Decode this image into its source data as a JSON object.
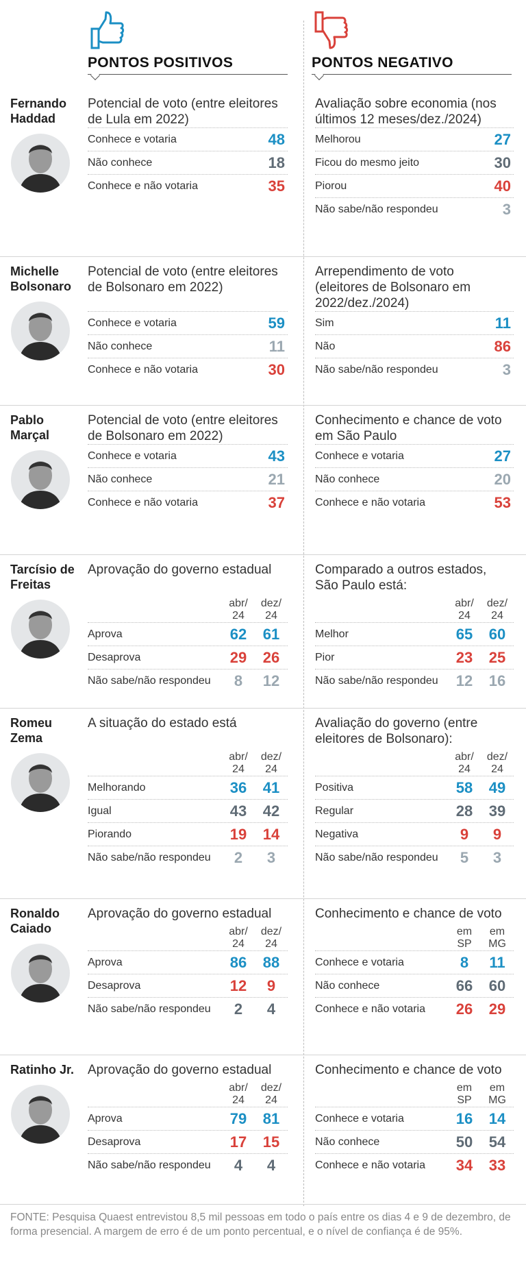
{
  "header": {
    "positive": "PONTOS POSITIVOS",
    "negative": "PONTOS NEGATIVO"
  },
  "people": [
    {
      "name": "Fernando Haddad",
      "positive": {
        "title": "Potencial de voto (entre eleitores de Lula em 2022)",
        "rows": [
          {
            "label": "Conhece e votaria",
            "values": [
              48
            ],
            "color": "#1b8fc4"
          },
          {
            "label": "Não conhece",
            "values": [
              18
            ],
            "color": "#5f6b75"
          },
          {
            "label": "Conhece e não votaria",
            "values": [
              35
            ],
            "color": "#d9413a"
          }
        ]
      },
      "negative": {
        "title": "Avaliação sobre economia (nos últimos 12 meses/dez./2024)",
        "rows": [
          {
            "label": "Melhorou",
            "values": [
              27
            ],
            "color": "#1b8fc4"
          },
          {
            "label": "Ficou do mesmo jeito",
            "values": [
              30
            ],
            "color": "#5f6b75"
          },
          {
            "label": "Piorou",
            "values": [
              40
            ],
            "color": "#d9413a"
          },
          {
            "label": "Não sabe/não respondeu",
            "values": [
              3
            ],
            "color": "#9aa7b0"
          }
        ]
      }
    },
    {
      "name": "Michelle Bolsonaro",
      "positive": {
        "title": "Potencial de voto (entre eleitores de Bolsonaro em 2022)",
        "rows": [
          {
            "label": "Conhece e votaria",
            "values": [
              59
            ],
            "color": "#1b8fc4"
          },
          {
            "label": "Não conhece",
            "values": [
              11
            ],
            "color": "#9aa7b0"
          },
          {
            "label": "Conhece e não votaria",
            "values": [
              30
            ],
            "color": "#d9413a"
          }
        ]
      },
      "negative": {
        "title": "Arrependimento de voto (eleitores de Bolsonaro em 2022/dez./2024)",
        "rows": [
          {
            "label": "Sim",
            "values": [
              11
            ],
            "color": "#1b8fc4"
          },
          {
            "label": "Não",
            "values": [
              86
            ],
            "color": "#d9413a"
          },
          {
            "label": "Não sabe/não respondeu",
            "values": [
              3
            ],
            "color": "#9aa7b0"
          }
        ]
      }
    },
    {
      "name": "Pablo Marçal",
      "positive": {
        "title": "Potencial de voto (entre eleitores de Bolsonaro em 2022)",
        "rows": [
          {
            "label": "Conhece e votaria",
            "values": [
              43
            ],
            "color": "#1b8fc4"
          },
          {
            "label": "Não conhece",
            "values": [
              21
            ],
            "color": "#9aa7b0"
          },
          {
            "label": "Conhece e não votaria",
            "values": [
              37
            ],
            "color": "#d9413a"
          }
        ]
      },
      "negative": {
        "title": "Conhecimento e chance de voto em São Paulo",
        "rows": [
          {
            "label": "Conhece e votaria",
            "values": [
              27
            ],
            "color": "#1b8fc4"
          },
          {
            "label": "Não conhece",
            "values": [
              20
            ],
            "color": "#9aa7b0"
          },
          {
            "label": "Conhece e não votaria",
            "values": [
              53
            ],
            "color": "#d9413a"
          }
        ]
      }
    },
    {
      "name": "Tarcísio de Freitas",
      "positive": {
        "title": "Aprovação do governo estadual",
        "columns": [
          "abr/ 24",
          "dez/ 24"
        ],
        "rows": [
          {
            "label": "Aprova",
            "values": [
              62,
              61
            ],
            "color": "#1b8fc4"
          },
          {
            "label": "Desaprova",
            "values": [
              29,
              26
            ],
            "color": "#d9413a"
          },
          {
            "label": "Não sabe/não respondeu",
            "values": [
              8,
              12
            ],
            "color": "#9aa7b0"
          }
        ]
      },
      "negative": {
        "title": "Comparado a outros estados, São Paulo está:",
        "columns": [
          "abr/ 24",
          "dez/ 24"
        ],
        "rows": [
          {
            "label": "Melhor",
            "values": [
              65,
              60
            ],
            "color": "#1b8fc4"
          },
          {
            "label": "Pior",
            "values": [
              23,
              25
            ],
            "color": "#d9413a"
          },
          {
            "label": "Não sabe/não respondeu",
            "values": [
              12,
              16
            ],
            "color": "#9aa7b0"
          }
        ]
      }
    },
    {
      "name": "Romeu Zema",
      "positive": {
        "title": "A situação do estado está",
        "columns": [
          "abr/ 24",
          "dez/ 24"
        ],
        "rows": [
          {
            "label": "Melhorando",
            "values": [
              36,
              41
            ],
            "color": "#1b8fc4"
          },
          {
            "label": "Igual",
            "values": [
              43,
              42
            ],
            "color": "#5f6b75"
          },
          {
            "label": "Piorando",
            "values": [
              19,
              14
            ],
            "color": "#d9413a"
          },
          {
            "label": "Não sabe/não respondeu",
            "values": [
              2,
              3
            ],
            "color": "#9aa7b0"
          }
        ]
      },
      "negative": {
        "title": "Avaliação do governo (entre eleitores de Bolsonaro):",
        "columns": [
          "abr/ 24",
          "dez/ 24"
        ],
        "rows": [
          {
            "label": "Positiva",
            "values": [
              58,
              49
            ],
            "color": "#1b8fc4"
          },
          {
            "label": "Regular",
            "values": [
              28,
              39
            ],
            "color": "#5f6b75"
          },
          {
            "label": "Negativa",
            "values": [
              9,
              9
            ],
            "color": "#d9413a"
          },
          {
            "label": "Não sabe/não respondeu",
            "values": [
              5,
              3
            ],
            "color": "#9aa7b0"
          }
        ]
      }
    },
    {
      "name": "Ronaldo Caiado",
      "positive": {
        "title": "Aprovação do governo estadual",
        "columns": [
          "abr/ 24",
          "dez/ 24"
        ],
        "rows": [
          {
            "label": "Aprova",
            "values": [
              86,
              88
            ],
            "color": "#1b8fc4"
          },
          {
            "label": "Desaprova",
            "values": [
              12,
              9
            ],
            "color": "#d9413a"
          },
          {
            "label": "Não sabe/não respondeu",
            "values": [
              2,
              4
            ],
            "color": "#5f6b75"
          }
        ]
      },
      "negative": {
        "title": "Conhecimento e chance de voto",
        "columns": [
          "em SP",
          "em MG"
        ],
        "rows": [
          {
            "label": "Conhece e votaria",
            "values": [
              8,
              11
            ],
            "color": "#1b8fc4"
          },
          {
            "label": "Não conhece",
            "values": [
              66,
              60
            ],
            "color": "#5f6b75"
          },
          {
            "label": "Conhece e não votaria",
            "values": [
              26,
              29
            ],
            "color": "#d9413a"
          }
        ]
      }
    },
    {
      "name": "Ratinho Jr.",
      "positive": {
        "title": "Aprovação do governo estadual",
        "columns": [
          "abr/ 24",
          "dez/ 24"
        ],
        "rows": [
          {
            "label": "Aprova",
            "values": [
              79,
              81
            ],
            "color": "#1b8fc4"
          },
          {
            "label": "Desaprova",
            "values": [
              17,
              15
            ],
            "color": "#d9413a"
          },
          {
            "label": "Não sabe/não respondeu",
            "values": [
              4,
              4
            ],
            "color": "#5f6b75"
          }
        ]
      },
      "negative": {
        "title": "Conhecimento e chance de voto",
        "columns": [
          "em SP",
          "em MG"
        ],
        "rows": [
          {
            "label": "Conhece e votaria",
            "values": [
              16,
              14
            ],
            "color": "#1b8fc4"
          },
          {
            "label": "Não conhece",
            "values": [
              50,
              54
            ],
            "color": "#5f6b75"
          },
          {
            "label": "Conhece e não votaria",
            "values": [
              34,
              33
            ],
            "color": "#d9413a"
          }
        ]
      }
    }
  ],
  "source": "FONTE: Pesquisa Quaest entrevistou 8,5 mil pessoas em todo o país entre os dias 4 e 9 de dezembro, de forma presencial. A margem de erro é de um ponto percentual, e o nível de confiança é de 95%."
}
